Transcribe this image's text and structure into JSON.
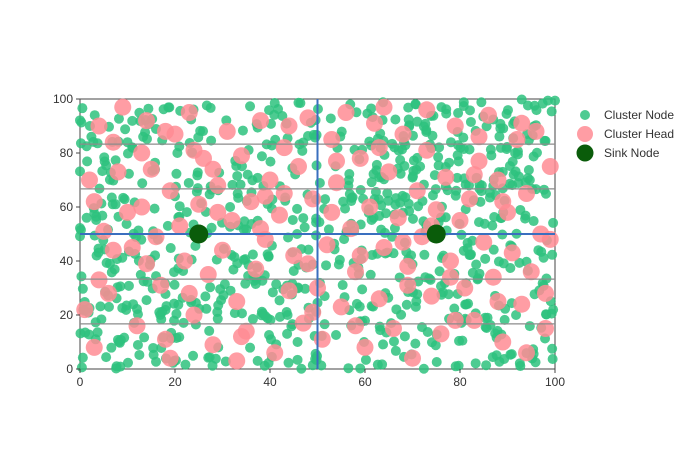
{
  "chart_data": {
    "type": "scatter",
    "title": "",
    "xlabel": "",
    "ylabel": "",
    "xlim": [
      0,
      100
    ],
    "ylim": [
      0,
      100
    ],
    "grid": true,
    "legend_position": "top-right",
    "x_ticks": [
      0,
      20,
      40,
      60,
      80,
      100
    ],
    "y_ticks": [
      0,
      20,
      40,
      60,
      80,
      100
    ],
    "horizontal_lines": [
      {
        "y": 16.7,
        "color": "#8c8c8c"
      },
      {
        "y": 33.3,
        "color": "#8c8c8c"
      },
      {
        "y": 50,
        "color": "#3a6fbf"
      },
      {
        "y": 66.7,
        "color": "#8c8c8c"
      },
      {
        "y": 83.3,
        "color": "#8c8c8c"
      }
    ],
    "vertical_lines": [
      {
        "x": 50,
        "color": "#3a6fbf"
      }
    ],
    "series": [
      {
        "name": "Cluster Node",
        "color": "#2ec27e",
        "marker": "small-circle",
        "points": []
      },
      {
        "name": "Cluster Head",
        "color": "#ff8c94",
        "marker": "large-circle",
        "points": [
          [
            1,
            22
          ],
          [
            2,
            70
          ],
          [
            3,
            62
          ],
          [
            4,
            90
          ],
          [
            5,
            51
          ],
          [
            6,
            28
          ],
          [
            7,
            84
          ],
          [
            8,
            73
          ],
          [
            10,
            58
          ],
          [
            11,
            45
          ],
          [
            12,
            16
          ],
          [
            13,
            80
          ],
          [
            14,
            92
          ],
          [
            15,
            74
          ],
          [
            16,
            49
          ],
          [
            17,
            31
          ],
          [
            18,
            11
          ],
          [
            19,
            66
          ],
          [
            20,
            87
          ],
          [
            21,
            53
          ],
          [
            22,
            40
          ],
          [
            23,
            95
          ],
          [
            24,
            20
          ],
          [
            25,
            61
          ],
          [
            26,
            78
          ],
          [
            27,
            35
          ],
          [
            28,
            9
          ],
          [
            29,
            68
          ],
          [
            30,
            44
          ],
          [
            31,
            88
          ],
          [
            32,
            55
          ],
          [
            33,
            25
          ],
          [
            34,
            79
          ],
          [
            35,
            14
          ],
          [
            36,
            62
          ],
          [
            37,
            37
          ],
          [
            38,
            92
          ],
          [
            39,
            48
          ],
          [
            40,
            70
          ],
          [
            41,
            6
          ],
          [
            42,
            57
          ],
          [
            43,
            82
          ],
          [
            44,
            29
          ],
          [
            45,
            42
          ],
          [
            46,
            75
          ],
          [
            47,
            17
          ],
          [
            48,
            93
          ],
          [
            49,
            63
          ],
          [
            50,
            30
          ],
          [
            51,
            11
          ],
          [
            52,
            46
          ],
          [
            53,
            85
          ],
          [
            54,
            69
          ],
          [
            55,
            23
          ],
          [
            56,
            95
          ],
          [
            57,
            52
          ],
          [
            58,
            36
          ],
          [
            59,
            78
          ],
          [
            60,
            8
          ],
          [
            61,
            60
          ],
          [
            62,
            91
          ],
          [
            63,
            26
          ],
          [
            64,
            45
          ],
          [
            65,
            73
          ],
          [
            66,
            15
          ],
          [
            67,
            56
          ],
          [
            68,
            87
          ],
          [
            69,
            38
          ],
          [
            70,
            4
          ],
          [
            71,
            66
          ],
          [
            72,
            49
          ],
          [
            73,
            81
          ],
          [
            74,
            27
          ],
          [
            75,
            59
          ],
          [
            76,
            13
          ],
          [
            77,
            71
          ],
          [
            78,
            40
          ],
          [
            79,
            90
          ],
          [
            80,
            55
          ],
          [
            81,
            30
          ],
          [
            82,
            63
          ],
          [
            83,
            18
          ],
          [
            84,
            77
          ],
          [
            85,
            47
          ],
          [
            86,
            94
          ],
          [
            87,
            34
          ],
          [
            88,
            70
          ],
          [
            89,
            10
          ],
          [
            90,
            58
          ],
          [
            91,
            43
          ],
          [
            92,
            85
          ],
          [
            93,
            24
          ],
          [
            94,
            65
          ],
          [
            95,
            36
          ],
          [
            96,
            88
          ],
          [
            97,
            50
          ],
          [
            98,
            28
          ],
          [
            99,
            75
          ],
          [
            4,
            33
          ],
          [
            9,
            97
          ],
          [
            14,
            39
          ],
          [
            19,
            4
          ],
          [
            24,
            81
          ],
          [
            29,
            58
          ],
          [
            34,
            12
          ],
          [
            39,
            64
          ],
          [
            44,
            90
          ],
          [
            49,
            21
          ],
          [
            54,
            77
          ],
          [
            59,
            42
          ],
          [
            64,
            97
          ],
          [
            69,
            31
          ],
          [
            74,
            53
          ],
          [
            79,
            18
          ],
          [
            84,
            86
          ],
          [
            89,
            62
          ],
          [
            94,
            6
          ],
          [
            99,
            48
          ],
          [
            7,
            44
          ],
          [
            13,
            60
          ],
          [
            18,
            88
          ],
          [
            23,
            28
          ],
          [
            28,
            74
          ],
          [
            33,
            3
          ],
          [
            38,
            52
          ],
          [
            43,
            65
          ],
          [
            48,
            39
          ],
          [
            53,
            58
          ],
          [
            58,
            16
          ],
          [
            63,
            82
          ],
          [
            68,
            47
          ],
          [
            73,
            96
          ],
          [
            78,
            34
          ],
          [
            83,
            72
          ],
          [
            88,
            25
          ],
          [
            93,
            91
          ],
          [
            98,
            15
          ],
          [
            3,
            8
          ]
        ]
      },
      {
        "name": "Sink Node",
        "color": "#0a5c0a",
        "marker": "sink-circle",
        "points": [
          [
            25,
            50
          ],
          [
            75,
            50
          ]
        ]
      }
    ]
  }
}
